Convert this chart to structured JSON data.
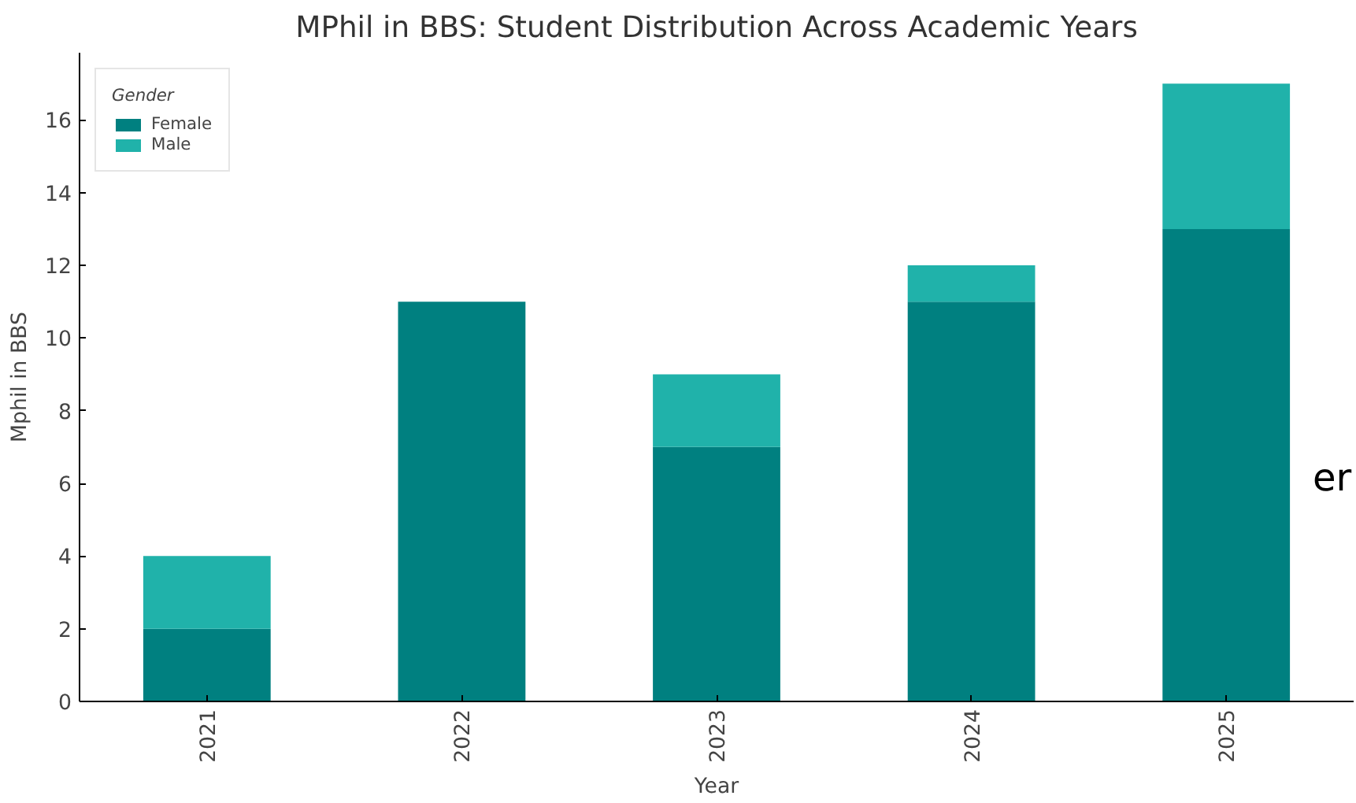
{
  "chart_data": {
    "type": "bar",
    "title": "MPhil in BBS: Student Distribution Across Academic Years",
    "xlabel": "Year",
    "ylabel": "Mphil in BBS",
    "legend_title": "Gender",
    "categories": [
      "2021",
      "2022",
      "2023",
      "2024",
      "2025"
    ],
    "stacked": true,
    "series": [
      {
        "name": "Female",
        "color": "#008080",
        "values": [
          2,
          11,
          7,
          11,
          13
        ]
      },
      {
        "name": "Male",
        "color": "#20b2aa",
        "values": [
          2,
          0,
          2,
          1,
          4
        ]
      }
    ],
    "ylim": [
      0,
      17.85
    ],
    "yticks": [
      0,
      2,
      4,
      6,
      8,
      10,
      12,
      14,
      16
    ],
    "grid": false,
    "legend": "top left",
    "annotations": [
      "er"
    ]
  }
}
